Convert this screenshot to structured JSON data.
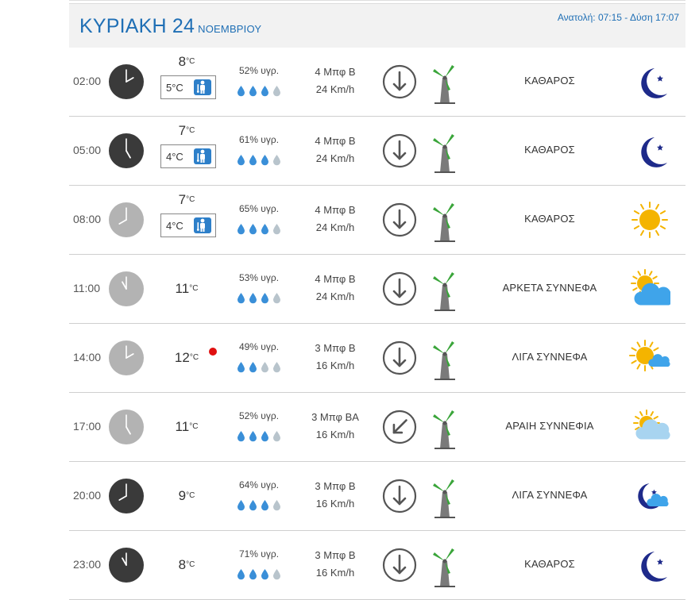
{
  "header": {
    "day_label": "ΚΥΡΙΑΚΗ 24",
    "month_label": "ΝΟΕΜΒΡΙΟΥ",
    "sunrise_sunset": "Ανατολή: 07:15 - Δύση 17:07"
  },
  "rows": [
    {
      "time": "02:00",
      "clock_hour": 2,
      "night": true,
      "temp": "8",
      "unit": "°C",
      "feels": "5°C",
      "humidity": "52% υγρ.",
      "drops": 3,
      "wind_bf": "4 Μπφ Β",
      "wind_kmh": "24 Km/h",
      "wind_dir": "N",
      "condition": "ΚΑΘΑΡΟΣ",
      "icon": "moon-icon",
      "max": false
    },
    {
      "time": "05:00",
      "clock_hour": 5,
      "night": true,
      "temp": "7",
      "unit": "°C",
      "feels": "4°C",
      "humidity": "61% υγρ.",
      "drops": 3,
      "wind_bf": "4 Μπφ Β",
      "wind_kmh": "24 Km/h",
      "wind_dir": "N",
      "condition": "ΚΑΘΑΡΟΣ",
      "icon": "moon-icon",
      "max": false
    },
    {
      "time": "08:00",
      "clock_hour": 8,
      "night": false,
      "temp": "7",
      "unit": "°C",
      "feels": "4°C",
      "humidity": "65% υγρ.",
      "drops": 3,
      "wind_bf": "4 Μπφ Β",
      "wind_kmh": "24 Km/h",
      "wind_dir": "N",
      "condition": "ΚΑΘΑΡΟΣ",
      "icon": "sun-icon",
      "max": false
    },
    {
      "time": "11:00",
      "clock_hour": 11,
      "night": false,
      "temp": "11",
      "unit": "°C",
      "feels": null,
      "humidity": "53% υγρ.",
      "drops": 3,
      "wind_bf": "4 Μπφ Β",
      "wind_kmh": "24 Km/h",
      "wind_dir": "N",
      "condition": "ΑΡΚΕΤΑ ΣΥΝΝΕΦΑ",
      "icon": "sun-cloud-icon",
      "max": false
    },
    {
      "time": "14:00",
      "clock_hour": 2,
      "night": false,
      "temp": "12",
      "unit": "°C",
      "feels": null,
      "humidity": "49% υγρ.",
      "drops": 2,
      "wind_bf": "3 Μπφ Β",
      "wind_kmh": "16 Km/h",
      "wind_dir": "N",
      "condition": "ΛΙΓΑ ΣΥΝΝΕΦΑ",
      "icon": "sun-small-cloud-icon",
      "max": true
    },
    {
      "time": "17:00",
      "clock_hour": 5,
      "night": false,
      "temp": "11",
      "unit": "°C",
      "feels": null,
      "humidity": "52% υγρ.",
      "drops": 3,
      "wind_bf": "3 Μπφ ΒΑ",
      "wind_kmh": "16 Km/h",
      "wind_dir": "NE",
      "condition": "ΑΡΑΙΗ ΣΥΝΝΕΦΙΑ",
      "icon": "hazy-cloud-icon",
      "max": false
    },
    {
      "time": "20:00",
      "clock_hour": 8,
      "night": true,
      "temp": "9",
      "unit": "°C",
      "feels": null,
      "humidity": "64% υγρ.",
      "drops": 3,
      "wind_bf": "3 Μπφ Β",
      "wind_kmh": "16 Km/h",
      "wind_dir": "N",
      "condition": "ΛΙΓΑ ΣΥΝΝΕΦΑ",
      "icon": "moon-cloud-icon",
      "max": false
    },
    {
      "time": "23:00",
      "clock_hour": 11,
      "night": true,
      "temp": "8",
      "unit": "°C",
      "feels": null,
      "humidity": "71% υγρ.",
      "drops": 3,
      "wind_bf": "3 Μπφ Β",
      "wind_kmh": "16 Km/h",
      "wind_dir": "N",
      "condition": "ΚΑΘΑΡΟΣ",
      "icon": "moon-icon",
      "max": false
    }
  ],
  "colors": {
    "accent": "#1f6fb5",
    "clock_night": "#3a3a3a",
    "clock_day": "#b3b3b3",
    "drop_full": "#3a8fd8",
    "drop_empty": "#b8c4cc",
    "moon": "#1e2a8a",
    "sun": "#f4b400",
    "cloud": "#3fa4ea",
    "turbine_blade": "#3aa53a"
  }
}
